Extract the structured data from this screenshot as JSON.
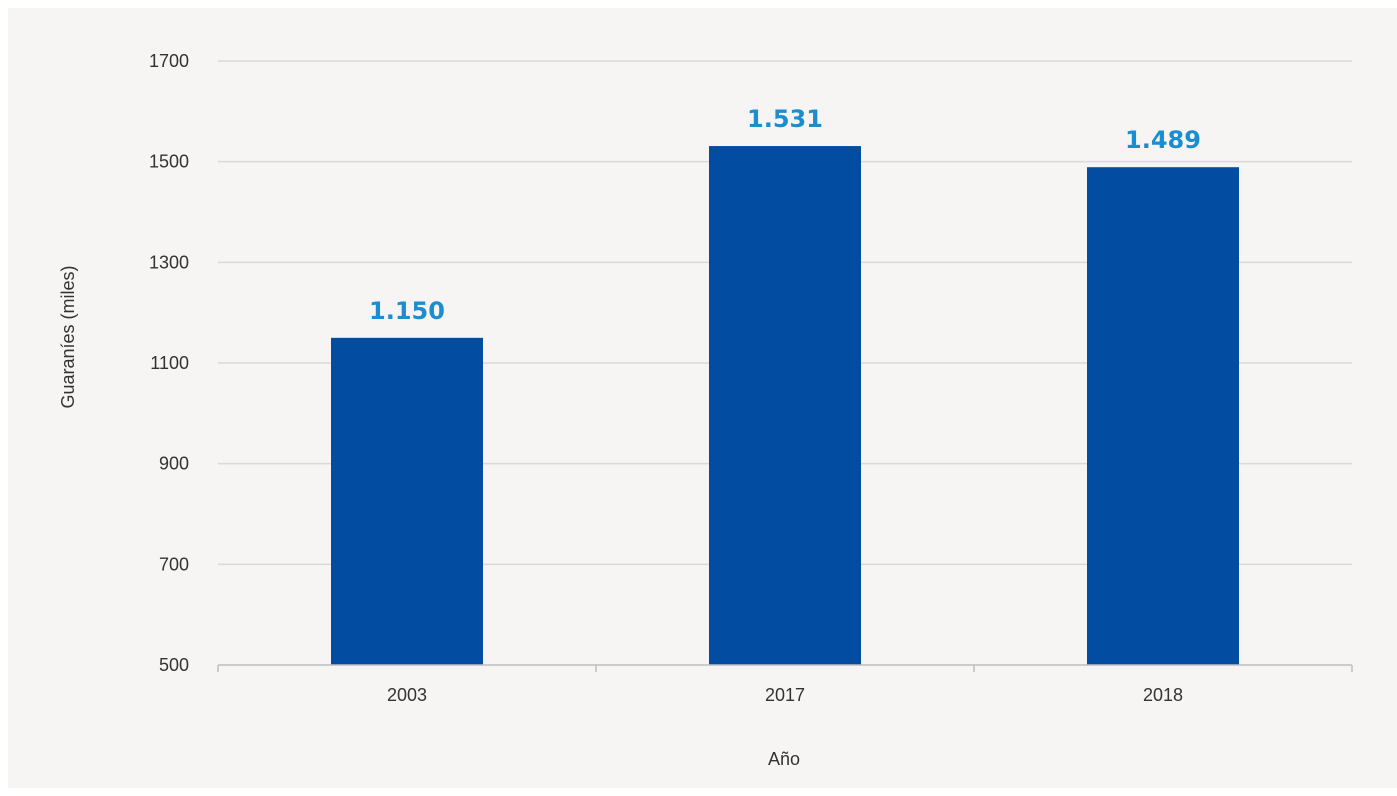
{
  "chart_data": {
    "type": "bar",
    "categories": [
      "2003",
      "2017",
      "2018"
    ],
    "values": [
      1150,
      1531,
      1489
    ],
    "data_labels": [
      "1.150",
      "1.531",
      "1.489"
    ],
    "xlabel": "Año",
    "ylabel": "Guaraníes (miles)",
    "ylim": [
      500,
      1700
    ],
    "yticks": [
      500,
      700,
      900,
      1100,
      1300,
      1500,
      1700
    ],
    "ytick_labels": [
      "500",
      "700",
      "900",
      "1100",
      "1300",
      "1500",
      "1700"
    ],
    "grid": true,
    "legend": "none"
  },
  "colors": {
    "bar": "#024da1",
    "data_label": "#1b8dd1",
    "grid": "#d9d9d9",
    "axis": "#bfbfbf",
    "background": "#f6f5f3"
  }
}
